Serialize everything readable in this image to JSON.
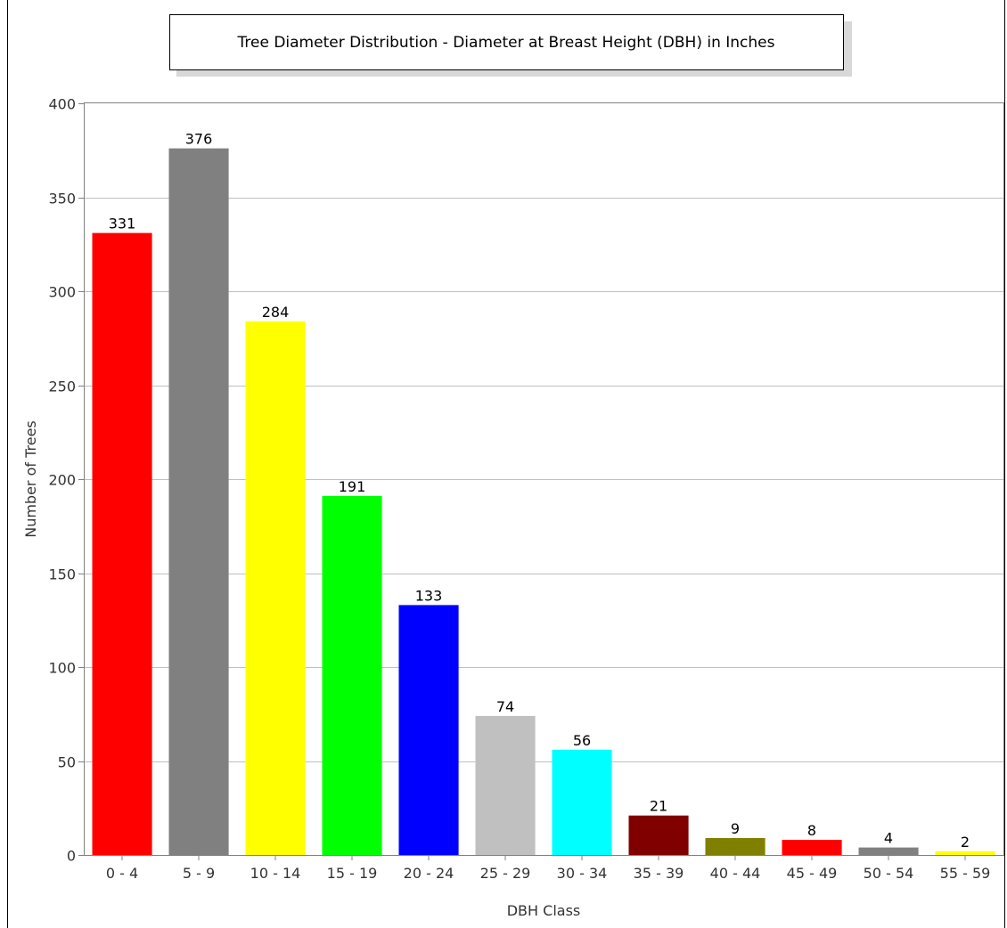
{
  "chart_data": {
    "type": "bar",
    "title": "Tree Diameter Distribution - Diameter at Breast Height (DBH) in Inches",
    "xlabel": "DBH Class",
    "ylabel": "Number of Trees",
    "categories": [
      "0 - 4",
      "5 - 9",
      "10 - 14",
      "15 - 19",
      "20 - 24",
      "25 - 29",
      "30 - 34",
      "35 - 39",
      "40 - 44",
      "45 - 49",
      "50 - 54",
      "55 - 59"
    ],
    "values": [
      331,
      376,
      284,
      191,
      133,
      74,
      56,
      21,
      9,
      8,
      4,
      2
    ],
    "colors": [
      "#ff0000",
      "#808080",
      "#ffff00",
      "#00ff00",
      "#0000ff",
      "#c0c0c0",
      "#00ffff",
      "#800000",
      "#808000",
      "#ff0000",
      "#808080",
      "#ffff00"
    ],
    "ylim": [
      0,
      400
    ],
    "yticks": [
      0,
      50,
      100,
      150,
      200,
      250,
      300,
      350,
      400
    ],
    "grid": true,
    "legend": "none"
  }
}
